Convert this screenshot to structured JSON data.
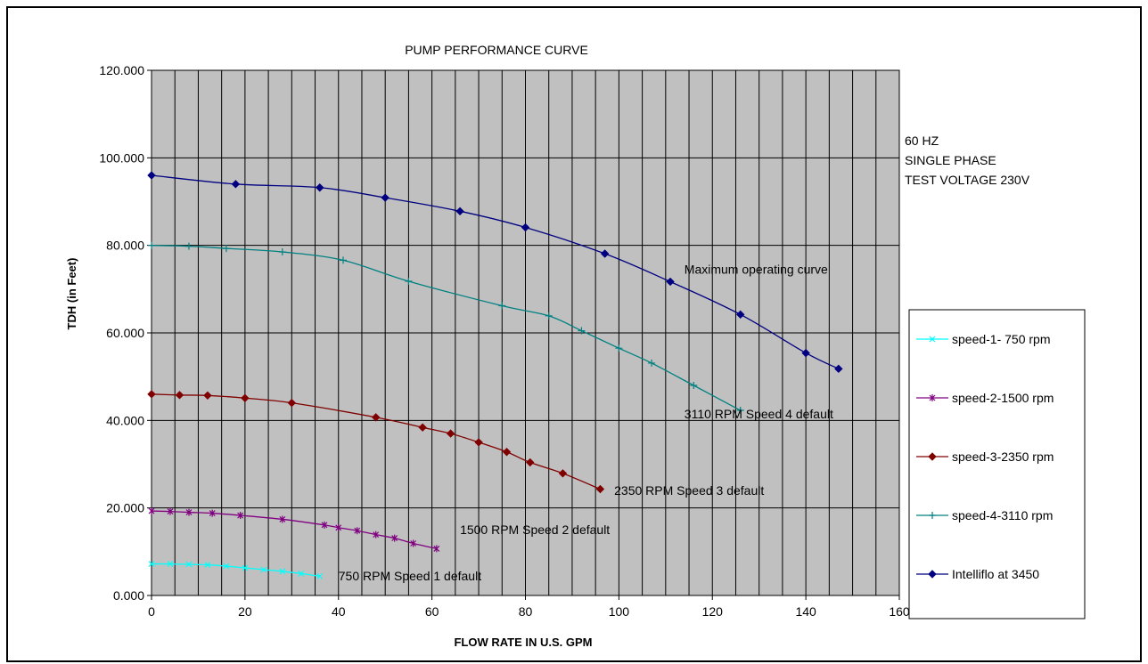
{
  "chart_data": {
    "type": "line",
    "title": "PUMP PERFORMANCE CURVE",
    "xlabel": "FLOW RATE IN U.S. GPM",
    "ylabel": "TDH   (in Feet)",
    "xlim": [
      0,
      160
    ],
    "ylim": [
      0,
      120
    ],
    "x_ticks": [
      "0",
      "20",
      "40",
      "60",
      "80",
      "100",
      "120",
      "140",
      "160"
    ],
    "y_ticks": [
      "0.000",
      "20.000",
      "40.000",
      "60.000",
      "80.000",
      "100.000",
      "120.000"
    ],
    "grid": true,
    "plot_background": "#c0c0c0",
    "legend_position": "right",
    "info_text": [
      "60 HZ",
      "SINGLE PHASE",
      "TEST VOLTAGE 230V"
    ],
    "series": [
      {
        "name": "speed-1- 750 rpm",
        "color": "#00ffff",
        "marker": "x",
        "x": [
          0,
          4,
          8,
          12,
          16,
          20,
          24,
          28,
          32,
          36
        ],
        "y": [
          7.2,
          7.2,
          7.1,
          7.0,
          6.7,
          6.3,
          5.9,
          5.5,
          5.0,
          4.4
        ]
      },
      {
        "name": "speed-2-1500 rpm",
        "color": "#800080",
        "marker": "star",
        "x": [
          0,
          4,
          8,
          13,
          19,
          28,
          37,
          40,
          44,
          48,
          52,
          56,
          61
        ],
        "y": [
          19.3,
          19.2,
          19.0,
          18.8,
          18.3,
          17.4,
          16.1,
          15.5,
          14.8,
          13.9,
          13.1,
          11.9,
          10.7
        ]
      },
      {
        "name": "speed-3-2350 rpm",
        "color": "#800000",
        "marker": "diamond",
        "x": [
          0,
          6,
          12,
          20,
          30,
          48,
          58,
          64,
          70,
          76,
          81,
          88,
          96
        ],
        "y": [
          46.0,
          45.8,
          45.7,
          45.1,
          44.0,
          40.7,
          38.4,
          37.0,
          35.0,
          32.8,
          30.4,
          27.9,
          24.3
        ]
      },
      {
        "name": "speed-4-3110 rpm",
        "color": "#008080",
        "marker": "plus",
        "x": [
          0,
          8,
          16,
          28,
          41,
          55,
          75,
          85,
          92,
          100,
          107,
          116,
          126
        ],
        "y": [
          80.0,
          79.8,
          79.3,
          78.5,
          76.6,
          71.8,
          66.2,
          63.9,
          60.5,
          56.5,
          53.1,
          48.0,
          42.3
        ]
      },
      {
        "name": "Intelliflo at 3450",
        "color": "#000080",
        "marker": "diamond",
        "x": [
          0,
          18,
          36,
          50,
          66,
          80,
          97,
          111,
          126,
          140,
          147
        ],
        "y": [
          96.0,
          94.0,
          93.2,
          90.9,
          87.8,
          84.1,
          78.1,
          71.7,
          64.2,
          55.4,
          51.8
        ]
      }
    ],
    "annotations": [
      {
        "text": "Maximum operating curve",
        "x": 114,
        "y": 73.5
      },
      {
        "text": "3110 RPM Speed 4 default",
        "x": 114,
        "y": 40.5
      },
      {
        "text": "2350 RPM Speed 3 default",
        "x": 99,
        "y": 23.0
      },
      {
        "text": "1500 RPM Speed 2 default",
        "x": 66,
        "y": 14.0
      },
      {
        "text": "750 RPM Speed 1 default",
        "x": 40,
        "y": 3.5
      }
    ]
  }
}
